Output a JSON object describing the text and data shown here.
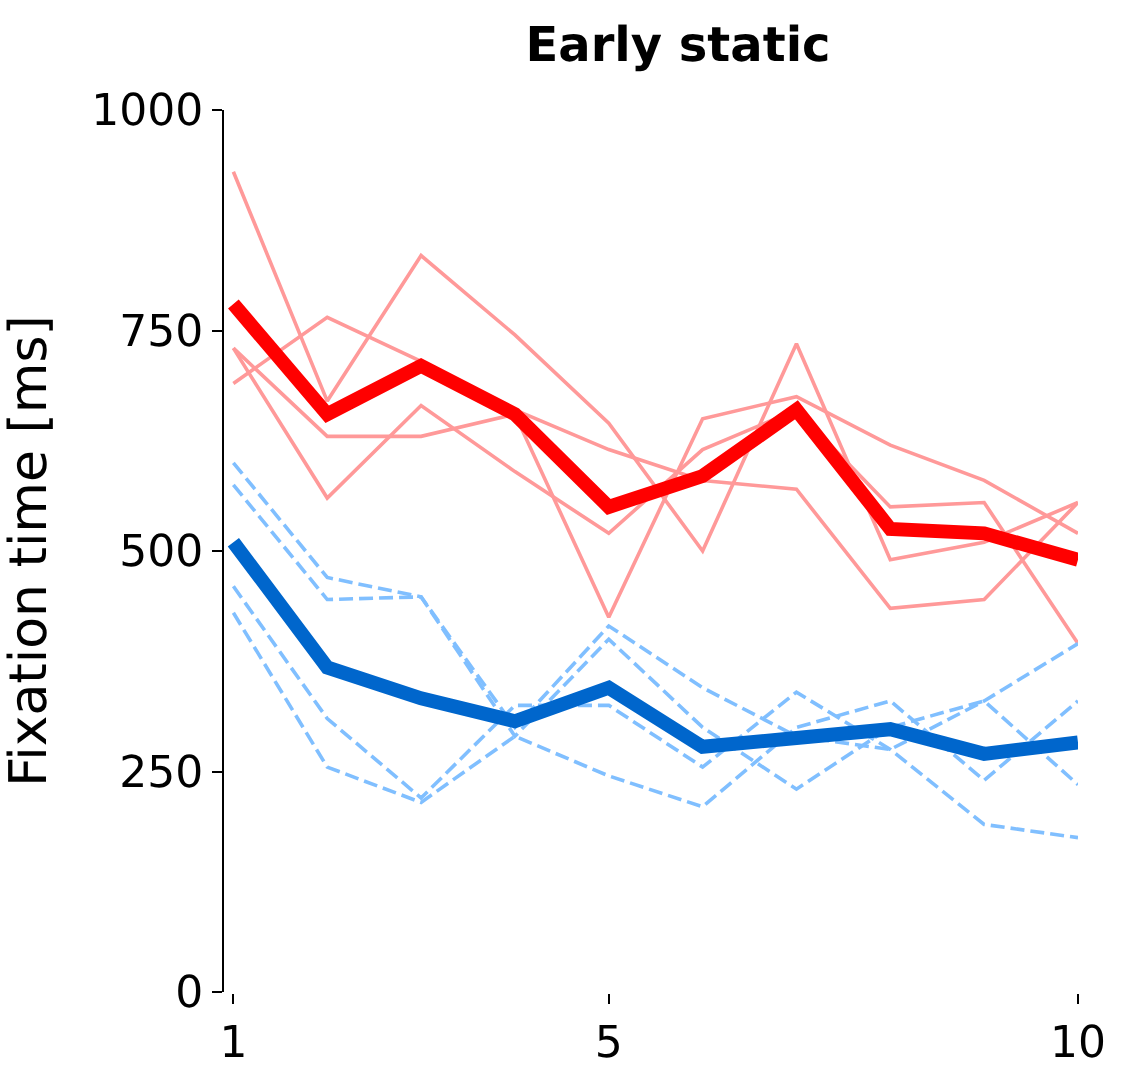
{
  "chart_data": {
    "type": "line",
    "title": "Early static",
    "ylabel": "Fixation time [ms]",
    "x": [
      1,
      2,
      3,
      4,
      5,
      6,
      7,
      8,
      9,
      10
    ],
    "xlim": [
      0.9,
      10
    ],
    "xticks": [
      1,
      5,
      10
    ],
    "ylim": [
      0,
      1000
    ],
    "yticks": [
      0,
      250,
      500,
      750,
      1000
    ],
    "marker": "none",
    "series": [
      {
        "color": "#ff9999",
        "line_style": "solid",
        "values": [
          930,
          670,
          835,
          745,
          645,
          500,
          735,
          490,
          510,
          555
        ]
      },
      {
        "color": "#ff9999",
        "line_style": "solid",
        "values": [
          690,
          765,
          715,
          660,
          615,
          580,
          570,
          435,
          445,
          555
        ]
      },
      {
        "color": "#ff9999",
        "line_style": "solid",
        "values": [
          730,
          630,
          630,
          655,
          425,
          650,
          675,
          620,
          580,
          520
        ]
      },
      {
        "color": "#ff9999",
        "line_style": "solid",
        "values": [
          730,
          560,
          665,
          590,
          520,
          615,
          660,
          550,
          555,
          395
        ]
      },
      {
        "color": "#80bfff",
        "line_style": "dashed",
        "values": [
          600,
          470,
          448,
          300,
          415,
          345,
          290,
          275,
          330,
          395
        ]
      },
      {
        "color": "#80bfff",
        "line_style": "dashed",
        "values": [
          575,
          445,
          448,
          290,
          400,
          300,
          230,
          300,
          330,
          235
        ]
      },
      {
        "color": "#80bfff",
        "line_style": "dashed",
        "values": [
          460,
          310,
          220,
          325,
          325,
          255,
          340,
          275,
          190,
          175
        ]
      },
      {
        "color": "#80bfff",
        "line_style": "dashed",
        "values": [
          430,
          255,
          215,
          290,
          245,
          210,
          300,
          330,
          240,
          330
        ]
      },
      {
        "color": "#ff0000",
        "line_style": "solid",
        "values": [
          780,
          655,
          710,
          655,
          550,
          585,
          660,
          525,
          520,
          490
        ]
      },
      {
        "color": "#0066cc",
        "line_style": "solid",
        "values": [
          510,
          368,
          333,
          307,
          345,
          278,
          288,
          298,
          270,
          283
        ]
      }
    ]
  }
}
